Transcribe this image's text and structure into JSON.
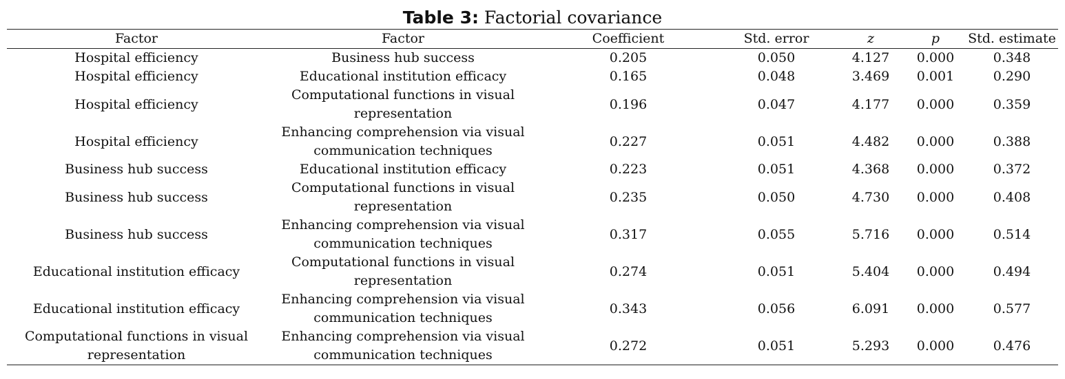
{
  "table": {
    "caption_label": "Table 3:",
    "caption_text": " Factorial covariance",
    "headers": [
      "Factor",
      "Factor",
      "Coefficient",
      "Std. error",
      "z",
      "p",
      "Std. estimate"
    ],
    "rows": [
      {
        "f1": "Hospital efficiency",
        "f2": "Business hub success",
        "coef": "0.205",
        "se": "0.050",
        "z": "4.127",
        "p": "0.000",
        "est": "0.348"
      },
      {
        "f1": "Hospital efficiency",
        "f2": "Educational institution efficacy",
        "coef": "0.165",
        "se": "0.048",
        "z": "3.469",
        "p": "0.001",
        "est": "0.290"
      },
      {
        "f1": "Hospital efficiency",
        "f2": "Computational functions in visual representation",
        "coef": "0.196",
        "se": "0.047",
        "z": "4.177",
        "p": "0.000",
        "est": "0.359"
      },
      {
        "f1": "Hospital efficiency",
        "f2": "Enhancing comprehension via visual communication techniques",
        "coef": "0.227",
        "se": "0.051",
        "z": "4.482",
        "p": "0.000",
        "est": "0.388"
      },
      {
        "f1": "Business hub success",
        "f2": "Educational institution efficacy",
        "coef": "0.223",
        "se": "0.051",
        "z": "4.368",
        "p": "0.000",
        "est": "0.372"
      },
      {
        "f1": "Business hub success",
        "f2": "Computational functions in visual representation",
        "coef": "0.235",
        "se": "0.050",
        "z": "4.730",
        "p": "0.000",
        "est": "0.408"
      },
      {
        "f1": "Business hub success",
        "f2": "Enhancing comprehension via visual communication techniques",
        "coef": "0.317",
        "se": "0.055",
        "z": "5.716",
        "p": "0.000",
        "est": "0.514"
      },
      {
        "f1": "Educational institution efficacy",
        "f2": "Computational functions in visual representation",
        "coef": "0.274",
        "se": "0.051",
        "z": "5.404",
        "p": "0.000",
        "est": "0.494"
      },
      {
        "f1": "Educational institution efficacy",
        "f2": "Enhancing comprehension via visual communication techniques",
        "coef": "0.343",
        "se": "0.056",
        "z": "6.091",
        "p": "0.000",
        "est": "0.577"
      },
      {
        "f1": "Computational functions in visual representation",
        "f2": "Enhancing comprehension via visual communication techniques",
        "coef": "0.272",
        "se": "0.051",
        "z": "5.293",
        "p": "0.000",
        "est": "0.476"
      }
    ]
  }
}
